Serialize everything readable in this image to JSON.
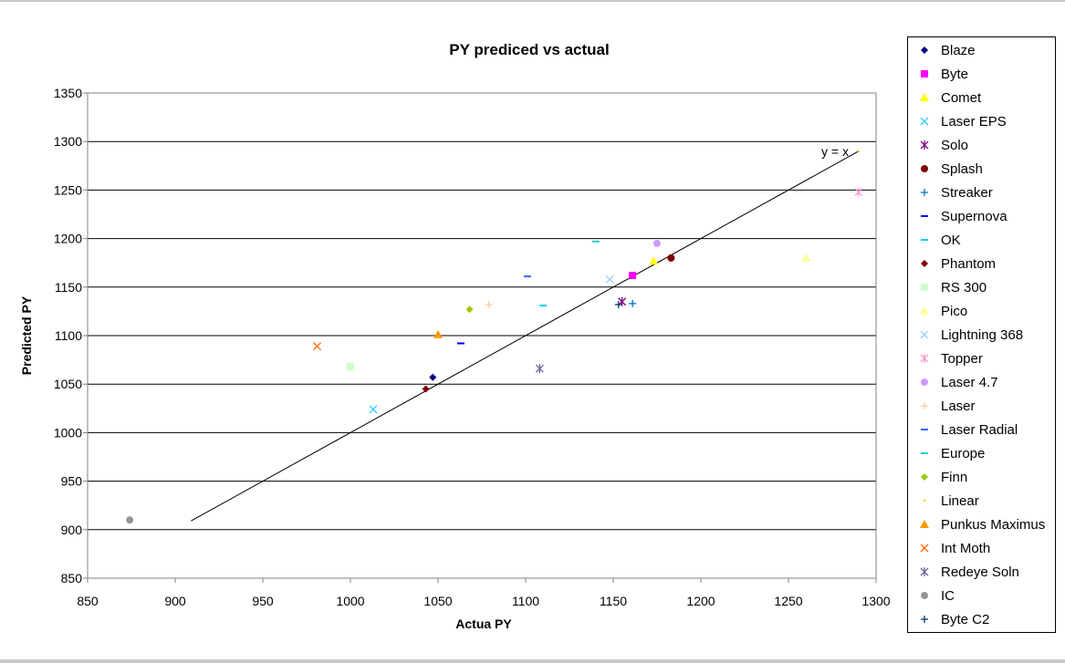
{
  "chart_data": {
    "type": "scatter",
    "title": "PY prediced vs actual",
    "xlabel": "Actua PY",
    "ylabel": "Predicted PY",
    "xlim": [
      850,
      1300
    ],
    "ylim": [
      850,
      1350
    ],
    "xticks": [
      "850",
      "900",
      "950",
      "1000",
      "1050",
      "1100",
      "1150",
      "1200",
      "1250",
      "1300"
    ],
    "yticks": [
      "850",
      "900",
      "950",
      "1000",
      "1050",
      "1100",
      "1150",
      "1200",
      "1250",
      "1300",
      "1350"
    ],
    "grid": "horizontal",
    "legend_position": "right",
    "annotation": "y = x",
    "series": [
      {
        "name": "Blaze",
        "color": "#000080",
        "marker": "diamond",
        "points": [
          [
            1047,
            1057
          ]
        ]
      },
      {
        "name": "Byte",
        "color": "#ff00ff",
        "marker": "square",
        "points": [
          [
            1161,
            1162
          ]
        ]
      },
      {
        "name": "Comet",
        "color": "#ffff00",
        "marker": "triangle",
        "points": [
          [
            1173,
            1177
          ]
        ]
      },
      {
        "name": "Laser EPS",
        "color": "#33ccff",
        "marker": "x",
        "points": [
          [
            1013,
            1024
          ]
        ]
      },
      {
        "name": "Solo",
        "color": "#800080",
        "marker": "star",
        "points": [
          [
            1155,
            1135
          ]
        ]
      },
      {
        "name": "Splash",
        "color": "#800000",
        "marker": "circle",
        "points": [
          [
            1183,
            1180
          ]
        ]
      },
      {
        "name": "Streaker",
        "color": "#0070c0",
        "marker": "plus",
        "points": [
          [
            1161,
            1133
          ]
        ]
      },
      {
        "name": "Supernova",
        "color": "#0000ff",
        "marker": "dash",
        "points": [
          [
            1063,
            1092
          ]
        ]
      },
      {
        "name": "OK",
        "color": "#00ccff",
        "marker": "dash",
        "points": [
          [
            1110,
            1131
          ]
        ]
      },
      {
        "name": "Phantom",
        "color": "#800000",
        "marker": "diamond",
        "points": [
          [
            1043,
            1045
          ]
        ]
      },
      {
        "name": "RS 300",
        "color": "#ccffcc",
        "marker": "square",
        "points": [
          [
            1000,
            1068
          ]
        ]
      },
      {
        "name": "Pico",
        "color": "#ffff99",
        "marker": "triangle",
        "points": [
          [
            1260,
            1180
          ]
        ]
      },
      {
        "name": "Lightning 368",
        "color": "#99ccff",
        "marker": "x",
        "points": [
          [
            1148,
            1158
          ]
        ]
      },
      {
        "name": "Topper",
        "color": "#ff99cc",
        "marker": "star",
        "points": [
          [
            1290,
            1248
          ]
        ]
      },
      {
        "name": "Laser 4.7",
        "color": "#cc99ff",
        "marker": "circle",
        "points": [
          [
            1175,
            1195
          ]
        ]
      },
      {
        "name": "Laser",
        "color": "#ffcc99",
        "marker": "plus",
        "points": [
          [
            1079,
            1132
          ]
        ]
      },
      {
        "name": "Laser Radial",
        "color": "#3366ff",
        "marker": "dash",
        "points": [
          [
            1101,
            1161
          ]
        ]
      },
      {
        "name": "Europe",
        "color": "#33cccc",
        "marker": "dash",
        "points": [
          [
            1140,
            1197
          ]
        ]
      },
      {
        "name": "Finn",
        "color": "#99cc00",
        "marker": "diamond",
        "points": [
          [
            1068,
            1127
          ]
        ]
      },
      {
        "name": "Linear",
        "color": "#ffcc00",
        "marker": "dot",
        "points": [
          [
            1290,
            1290
          ]
        ]
      },
      {
        "name": "Punkus Maximus",
        "color": "#ff9900",
        "marker": "triangle",
        "points": [
          [
            1050,
            1101
          ]
        ]
      },
      {
        "name": "Int Moth",
        "color": "#ff6600",
        "marker": "x",
        "points": [
          [
            981,
            1089
          ]
        ]
      },
      {
        "name": "Redeye Soln",
        "color": "#666699",
        "marker": "star",
        "points": [
          [
            1108,
            1066
          ]
        ]
      },
      {
        "name": "IC",
        "color": "#969696",
        "marker": "circle",
        "points": [
          [
            874,
            910
          ]
        ]
      },
      {
        "name": "Byte C2",
        "color": "#003366",
        "marker": "plus",
        "points": [
          [
            1153,
            1132
          ]
        ]
      }
    ],
    "reference_line": {
      "from": [
        909,
        909
      ],
      "to": [
        1290,
        1290
      ]
    }
  }
}
